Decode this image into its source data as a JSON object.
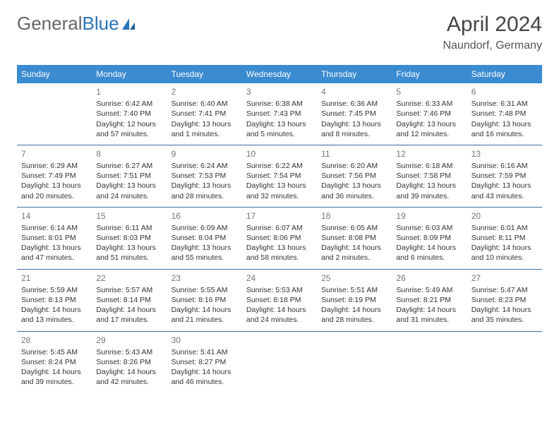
{
  "logo": {
    "part1": "General",
    "part2": "Blue"
  },
  "title": "April 2024",
  "location": "Naundorf, Germany",
  "colors": {
    "header_bg": "#3b8bd0",
    "header_text": "#ffffff",
    "row_border": "#3b6f9e",
    "daynum": "#777777",
    "body_text": "#333333",
    "logo_gray": "#666666",
    "logo_blue": "#2a74b8",
    "background": "#ffffff"
  },
  "typography": {
    "title_fontsize": 30,
    "location_fontsize": 16,
    "dayheader_fontsize": 12,
    "daynum_fontsize": 12,
    "cell_fontsize": 10.5
  },
  "dayHeaders": [
    "Sunday",
    "Monday",
    "Tuesday",
    "Wednesday",
    "Thursday",
    "Friday",
    "Saturday"
  ],
  "weeks": [
    [
      null,
      {
        "n": "1",
        "sr": "6:42 AM",
        "ss": "7:40 PM",
        "dh": "12",
        "dm": "57"
      },
      {
        "n": "2",
        "sr": "6:40 AM",
        "ss": "7:41 PM",
        "dh": "13",
        "dm": "1"
      },
      {
        "n": "3",
        "sr": "6:38 AM",
        "ss": "7:43 PM",
        "dh": "13",
        "dm": "5"
      },
      {
        "n": "4",
        "sr": "6:36 AM",
        "ss": "7:45 PM",
        "dh": "13",
        "dm": "8"
      },
      {
        "n": "5",
        "sr": "6:33 AM",
        "ss": "7:46 PM",
        "dh": "13",
        "dm": "12"
      },
      {
        "n": "6",
        "sr": "6:31 AM",
        "ss": "7:48 PM",
        "dh": "13",
        "dm": "16"
      }
    ],
    [
      {
        "n": "7",
        "sr": "6:29 AM",
        "ss": "7:49 PM",
        "dh": "13",
        "dm": "20"
      },
      {
        "n": "8",
        "sr": "6:27 AM",
        "ss": "7:51 PM",
        "dh": "13",
        "dm": "24"
      },
      {
        "n": "9",
        "sr": "6:24 AM",
        "ss": "7:53 PM",
        "dh": "13",
        "dm": "28"
      },
      {
        "n": "10",
        "sr": "6:22 AM",
        "ss": "7:54 PM",
        "dh": "13",
        "dm": "32"
      },
      {
        "n": "11",
        "sr": "6:20 AM",
        "ss": "7:56 PM",
        "dh": "13",
        "dm": "36"
      },
      {
        "n": "12",
        "sr": "6:18 AM",
        "ss": "7:58 PM",
        "dh": "13",
        "dm": "39"
      },
      {
        "n": "13",
        "sr": "6:16 AM",
        "ss": "7:59 PM",
        "dh": "13",
        "dm": "43"
      }
    ],
    [
      {
        "n": "14",
        "sr": "6:14 AM",
        "ss": "8:01 PM",
        "dh": "13",
        "dm": "47"
      },
      {
        "n": "15",
        "sr": "6:11 AM",
        "ss": "8:03 PM",
        "dh": "13",
        "dm": "51"
      },
      {
        "n": "16",
        "sr": "6:09 AM",
        "ss": "8:04 PM",
        "dh": "13",
        "dm": "55"
      },
      {
        "n": "17",
        "sr": "6:07 AM",
        "ss": "8:06 PM",
        "dh": "13",
        "dm": "58"
      },
      {
        "n": "18",
        "sr": "6:05 AM",
        "ss": "8:08 PM",
        "dh": "14",
        "dm": "2"
      },
      {
        "n": "19",
        "sr": "6:03 AM",
        "ss": "8:09 PM",
        "dh": "14",
        "dm": "6"
      },
      {
        "n": "20",
        "sr": "6:01 AM",
        "ss": "8:11 PM",
        "dh": "14",
        "dm": "10"
      }
    ],
    [
      {
        "n": "21",
        "sr": "5:59 AM",
        "ss": "8:13 PM",
        "dh": "14",
        "dm": "13"
      },
      {
        "n": "22",
        "sr": "5:57 AM",
        "ss": "8:14 PM",
        "dh": "14",
        "dm": "17"
      },
      {
        "n": "23",
        "sr": "5:55 AM",
        "ss": "8:16 PM",
        "dh": "14",
        "dm": "21"
      },
      {
        "n": "24",
        "sr": "5:53 AM",
        "ss": "8:18 PM",
        "dh": "14",
        "dm": "24"
      },
      {
        "n": "25",
        "sr": "5:51 AM",
        "ss": "8:19 PM",
        "dh": "14",
        "dm": "28"
      },
      {
        "n": "26",
        "sr": "5:49 AM",
        "ss": "8:21 PM",
        "dh": "14",
        "dm": "31"
      },
      {
        "n": "27",
        "sr": "5:47 AM",
        "ss": "8:23 PM",
        "dh": "14",
        "dm": "35"
      }
    ],
    [
      {
        "n": "28",
        "sr": "5:45 AM",
        "ss": "8:24 PM",
        "dh": "14",
        "dm": "39"
      },
      {
        "n": "29",
        "sr": "5:43 AM",
        "ss": "8:26 PM",
        "dh": "14",
        "dm": "42"
      },
      {
        "n": "30",
        "sr": "5:41 AM",
        "ss": "8:27 PM",
        "dh": "14",
        "dm": "46"
      },
      null,
      null,
      null,
      null
    ]
  ],
  "labels": {
    "sunrise": "Sunrise:",
    "sunset": "Sunset:",
    "daylight": "Daylight:",
    "hours": "hours",
    "and": "and",
    "minutes": "minutes."
  }
}
